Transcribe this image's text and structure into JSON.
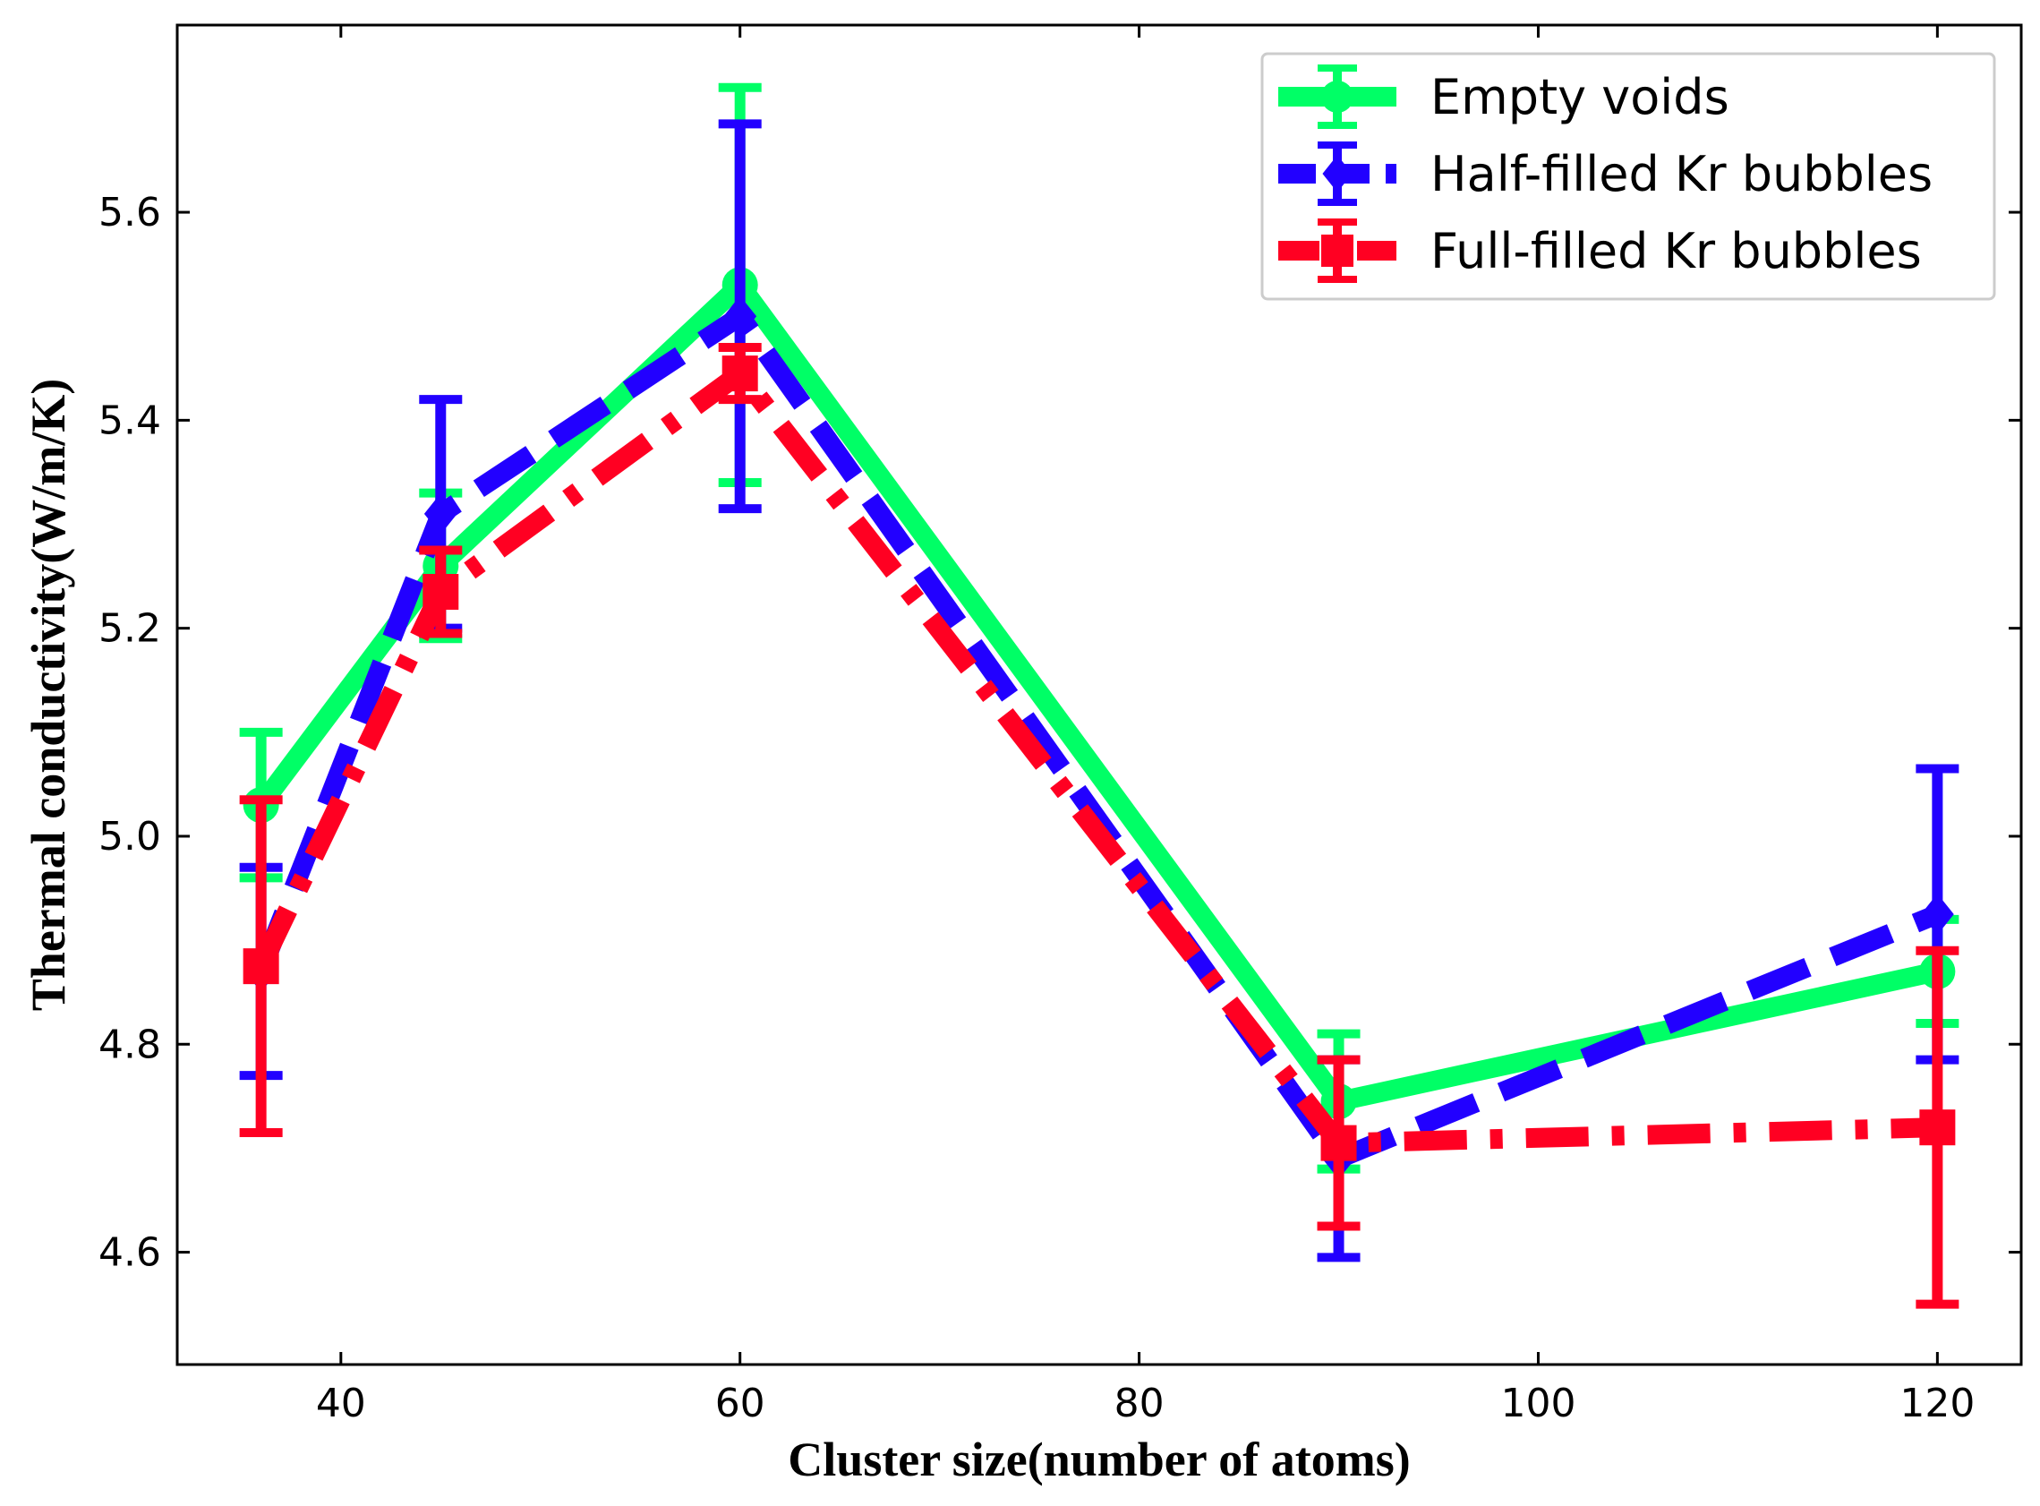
{
  "chart_data": {
    "type": "line",
    "xlabel": "Cluster size(number of atoms)",
    "ylabel": "Thermal conductivity(W/m/K)",
    "xlim": [
      31.8,
      124.2
    ],
    "ylim": [
      4.492,
      5.78
    ],
    "xticks": [
      40,
      60,
      80,
      100,
      120
    ],
    "yticks": [
      4.6,
      4.8,
      5.0,
      5.2,
      5.4,
      5.6
    ],
    "xtick_labels": [
      "40",
      "60",
      "80",
      "100",
      "120"
    ],
    "ytick_labels": [
      "4.6",
      "4.8",
      "5.0",
      "5.2",
      "5.4",
      "5.6"
    ],
    "grid": false,
    "legend_position": "top-right",
    "x": [
      36,
      45,
      60,
      90,
      120
    ],
    "series": [
      {
        "name": "Empty voids",
        "color": "#00ff66",
        "line_style": "solid",
        "marker": "circle",
        "values": [
          5.03,
          5.26,
          5.53,
          4.745,
          4.87
        ],
        "error": [
          0.07,
          0.07,
          0.19,
          0.065,
          0.05
        ]
      },
      {
        "name": "Half-filled Kr bubbles",
        "color": "#2200ff",
        "line_style": "dashed",
        "marker": "diamond",
        "values": [
          4.87,
          5.31,
          5.5,
          4.69,
          4.925
        ],
        "error": [
          0.1,
          0.11,
          0.185,
          0.095,
          0.14
        ]
      },
      {
        "name": "Full-filled Kr bubbles",
        "color": "#ff0022",
        "line_style": "dashdot",
        "marker": "square",
        "values": [
          4.875,
          5.235,
          5.445,
          4.705,
          4.72
        ],
        "error": [
          0.16,
          0.04,
          0.025,
          0.08,
          0.17
        ]
      }
    ]
  }
}
